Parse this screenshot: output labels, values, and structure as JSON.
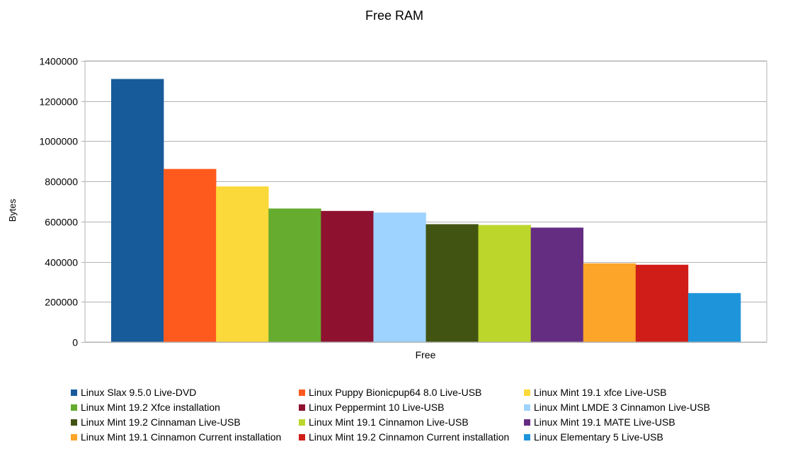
{
  "chart_data": {
    "type": "bar",
    "title": "Free RAM",
    "xlabel": "Free",
    "ylabel": "Bytes",
    "categories": [
      "Free"
    ],
    "ylim": [
      0,
      1400000
    ],
    "yticks": [
      0,
      200000,
      400000,
      600000,
      800000,
      1000000,
      1200000,
      1400000
    ],
    "grid": true,
    "legend_position": "bottom",
    "series": [
      {
        "name": "Linux Slax 9.5.0 Live-DVD",
        "values": [
          1310000
        ],
        "color": "#175b9b"
      },
      {
        "name": "Linux Puppy Bionicpup64 8.0 Live-USB",
        "values": [
          862000
        ],
        "color": "#ff5a1e"
      },
      {
        "name": "Linux Mint 19.1 xfce Live-USB",
        "values": [
          775000
        ],
        "color": "#fcd93a"
      },
      {
        "name": "Linux Mint 19.2 Xfce installation",
        "values": [
          665000
        ],
        "color": "#65ac2f"
      },
      {
        "name": "Linux Peppermint 10 Live-USB",
        "values": [
          653000
        ],
        "color": "#8e1230"
      },
      {
        "name": "Linux Mint LMDE 3 Cinnamon Live-USB",
        "values": [
          645000
        ],
        "color": "#9ed3ff"
      },
      {
        "name": "Linux Mint 19.2 Cinnaman Live-USB",
        "values": [
          587000
        ],
        "color": "#425411"
      },
      {
        "name": "Linux Mint 19.1 Cinnamon Live-USB",
        "values": [
          583000
        ],
        "color": "#bcd62c"
      },
      {
        "name": "Linux Mint 19.1 MATE Live-USB",
        "values": [
          570000
        ],
        "color": "#652d82"
      },
      {
        "name": "Linux Mint 19.1 Cinnamon Current installation",
        "values": [
          392000
        ],
        "color": "#fca529"
      },
      {
        "name": "Linux Mint 19.2 Cinnamon Current installation",
        "values": [
          385000
        ],
        "color": "#d01d18"
      },
      {
        "name": "Linux Elementary 5 Live-USB",
        "values": [
          244000
        ],
        "color": "#1e95db"
      }
    ]
  }
}
